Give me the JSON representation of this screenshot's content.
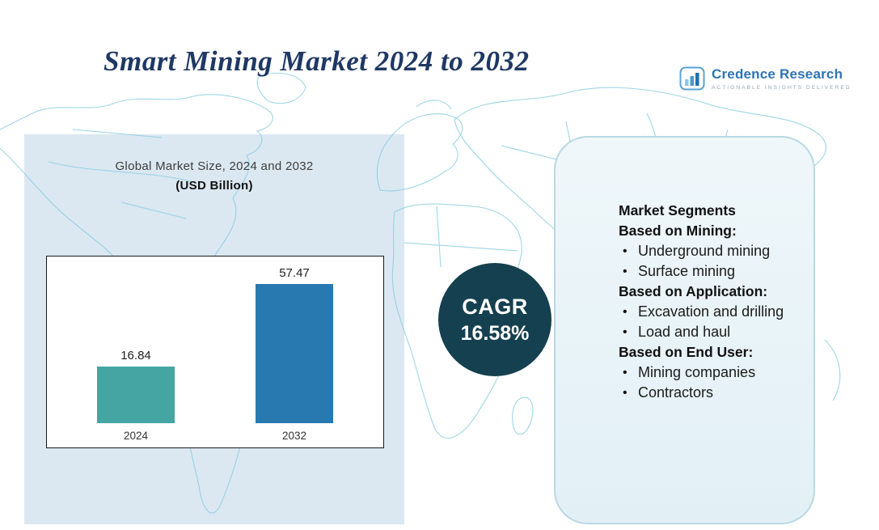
{
  "title": "Smart Mining Market 2024 to 2032",
  "logo": {
    "name": "Credence Research",
    "tagline": "Actionable Insights Delivered"
  },
  "chart_panel": {
    "subtitle_line1": "Global Market Size, 2024 and 2032",
    "subtitle_line2": "(USD Billion)"
  },
  "chart_data": {
    "type": "bar",
    "title": "Global Market Size, 2024 and 2032 (USD Billion)",
    "categories": [
      "2024",
      "2032"
    ],
    "values": [
      16.84,
      57.47
    ],
    "ylim": [
      0,
      60
    ],
    "grid": false,
    "legend": "none",
    "colors": [
      "#44A5A3",
      "#2779B0"
    ]
  },
  "cagr": {
    "label": "CAGR",
    "value": "16.58%"
  },
  "segments": {
    "heading": "Market Segments",
    "groups": [
      {
        "title": "Based on Mining:",
        "items": [
          "Underground mining",
          "Surface mining"
        ]
      },
      {
        "title": "Based on Application:",
        "items": [
          "Excavation and drilling",
          "Load and haul"
        ]
      },
      {
        "title": "Based on End User:",
        "items": [
          "Mining companies",
          "Contractors"
        ]
      }
    ]
  },
  "colors": {
    "title_text": "#1F3864",
    "cagr_circle": "#15404F",
    "bar_2024": "#44A5A3",
    "bar_2032": "#2779B0",
    "left_panel": "#DBE8F1",
    "map_lines": "#86CCDF"
  }
}
